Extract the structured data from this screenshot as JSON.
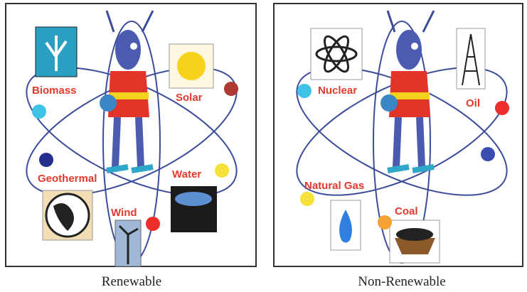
{
  "panels": [
    {
      "title": "Renewable",
      "labels": [
        "Biomass",
        "Solar",
        "Geothermal",
        "Water",
        "Wind"
      ]
    },
    {
      "title": "Non-Renewable",
      "labels": [
        "Nuclear",
        "Oil",
        "Natural Gas",
        "Coal"
      ]
    }
  ]
}
